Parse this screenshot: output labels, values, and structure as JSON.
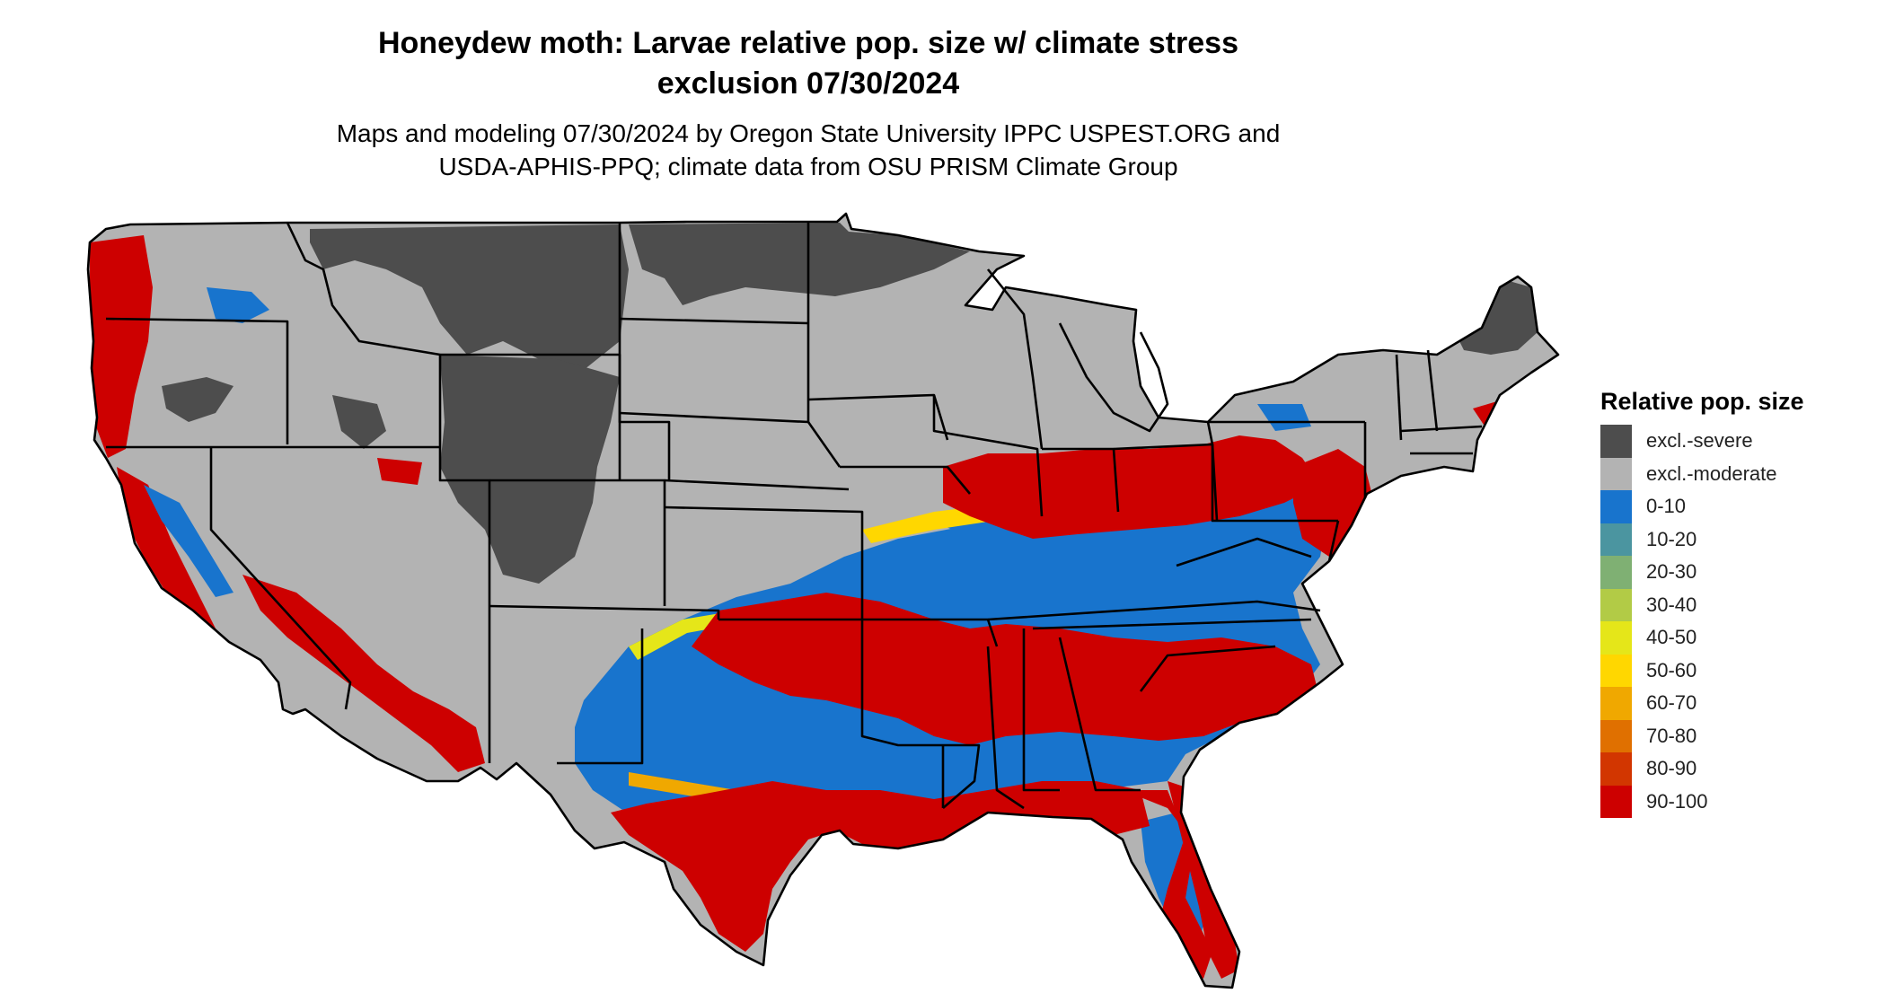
{
  "title": {
    "line1": "Honeydew moth: Larvae relative pop. size w/ climate stress",
    "line2": "exclusion 07/30/2024"
  },
  "subtitle": {
    "line1": "Maps and modeling 07/30/2024 by Oregon State University IPPC USPEST.ORG and",
    "line2": "USDA-APHIS-PPQ; climate data from OSU PRISM Climate Group"
  },
  "legend": {
    "title": "Relative pop. size",
    "items": [
      {
        "label": "excl.-severe",
        "color": "#4d4d4d"
      },
      {
        "label": "excl.-moderate",
        "color": "#b3b3b3"
      },
      {
        "label": "0-10",
        "color": "#1874cd"
      },
      {
        "label": "10-20",
        "color": "#4b95a0"
      },
      {
        "label": "20-30",
        "color": "#7fb073"
      },
      {
        "label": "30-40",
        "color": "#b2cb46"
      },
      {
        "label": "40-50",
        "color": "#e5e619"
      },
      {
        "label": "50-60",
        "color": "#ffd700"
      },
      {
        "label": "60-70",
        "color": "#f0a800"
      },
      {
        "label": "70-80",
        "color": "#e07000"
      },
      {
        "label": "80-90",
        "color": "#d23600"
      },
      {
        "label": "90-100",
        "color": "#cd0000"
      }
    ]
  },
  "map": {
    "region": "Contiguous United States",
    "boundary_color": "#000000"
  }
}
